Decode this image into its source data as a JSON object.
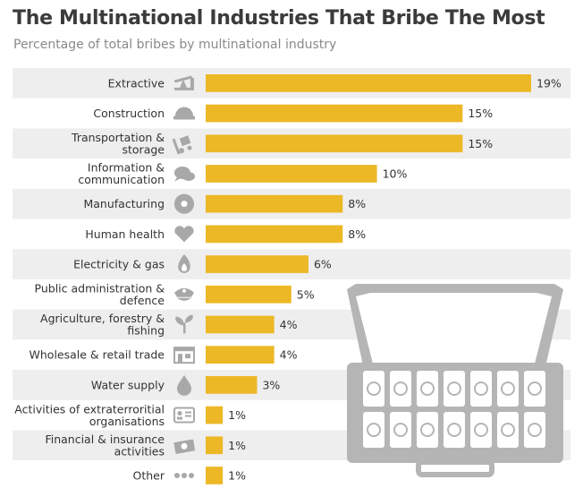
{
  "title": "The Multinational Industries That Bribe The Most",
  "subtitle": "Percentage of total bribes by multinational industry",
  "colors": {
    "bar": "#EDB826",
    "stripe": "#EEEEEE",
    "icon": "#A8A8A8",
    "briefcase": "#B5B5B5"
  },
  "chart_data": {
    "type": "bar",
    "orientation": "horizontal",
    "title": "The Multinational Industries That Bribe The Most",
    "subtitle": "Percentage of total bribes by multinational industry",
    "xlabel": "",
    "ylabel": "",
    "xlim": [
      0,
      19
    ],
    "unit": "%",
    "categories": [
      [
        "Extractive"
      ],
      [
        "Construction"
      ],
      [
        "Transportation &",
        "storage"
      ],
      [
        "Information &",
        "communication"
      ],
      [
        "Manufacturing"
      ],
      [
        "Human health"
      ],
      [
        "Electricity & gas"
      ],
      [
        "Public administration &",
        "defence"
      ],
      [
        "Agriculture, forestry &",
        "fishing"
      ],
      [
        "Wholesale & retail trade"
      ],
      [
        "Water supply"
      ],
      [
        "Activities of extraterroritial",
        "organisations"
      ],
      [
        "Financial & insurance",
        "activities"
      ],
      [
        "Other"
      ]
    ],
    "values": [
      19,
      15,
      15,
      10,
      8,
      8,
      6,
      5,
      4,
      4,
      3,
      1,
      1,
      1
    ],
    "value_labels": [
      "19%",
      "15%",
      "15%",
      "10%",
      "8%",
      "8%",
      "6%",
      "5%",
      "4%",
      "4%",
      "3%",
      "1%",
      "1%",
      "1%"
    ],
    "icons": [
      "oil-pump-icon",
      "hard-hat-icon",
      "hand-truck-icon",
      "speech-bubbles-icon",
      "gear-icon",
      "heart-icon",
      "flame-icon",
      "police-cap-icon",
      "sprout-icon",
      "shop-icon",
      "water-drop-icon",
      "id-card-icon",
      "banknote-icon",
      "ellipsis-icon"
    ]
  }
}
